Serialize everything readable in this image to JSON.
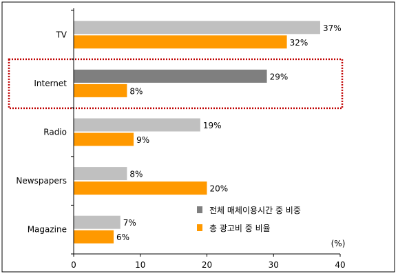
{
  "chart_data": {
    "type": "bar",
    "orientation": "horizontal",
    "categories": [
      "TV",
      "Internet",
      "Radio",
      "Newspapers",
      "Magazine"
    ],
    "series": [
      {
        "name": "전체 매체이용시간 중 비중",
        "values": [
          37,
          29,
          19,
          8,
          7
        ],
        "color": "#c0c0c0",
        "highlight_color": "#7f7f7f",
        "labels": [
          "37%",
          "29%",
          "19%",
          "8%",
          "7%"
        ]
      },
      {
        "name": "총 광고비 중 비율",
        "values": [
          32,
          8,
          9,
          20,
          6
        ],
        "color": "#ff9900",
        "labels": [
          "32%",
          "8%",
          "9%",
          "20%",
          "6%"
        ]
      }
    ],
    "highlight_category": "Internet",
    "highlight_color": "#c00000",
    "x_ticks": [
      0,
      10,
      20,
      30,
      40
    ],
    "x_tick_labels": [
      "0",
      "10",
      "20",
      "30",
      "40"
    ],
    "xlim": [
      0,
      40
    ],
    "unit_label": "(%)",
    "grid": false,
    "legend_position": "bottom-right"
  }
}
